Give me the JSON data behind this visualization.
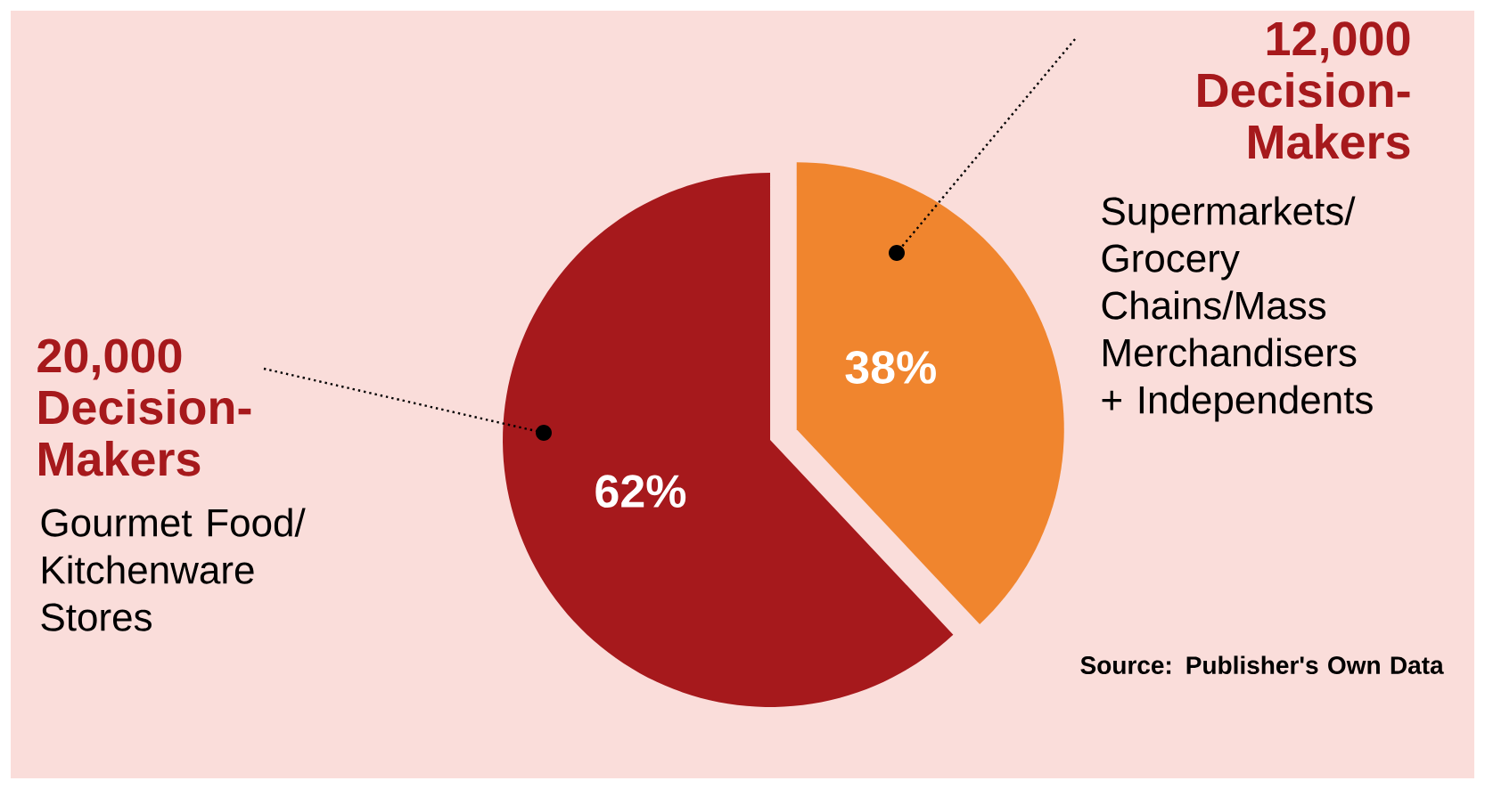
{
  "chart_data": {
    "type": "pie",
    "categories": [
      "Gourmet Food/ Kitchenware Stores",
      "Supermarkets/ Grocery Chains/Mass Merchandisers + Independents"
    ],
    "values": [
      62,
      38
    ],
    "value_labels": [
      "62%",
      "38%"
    ],
    "colors": [
      "#a6191c",
      "#f0852e"
    ],
    "annotations": [
      "20,000 Decision-Makers",
      "12,000 Decision-Makers",
      "Source: Publisher's Own Data"
    ]
  }
}
